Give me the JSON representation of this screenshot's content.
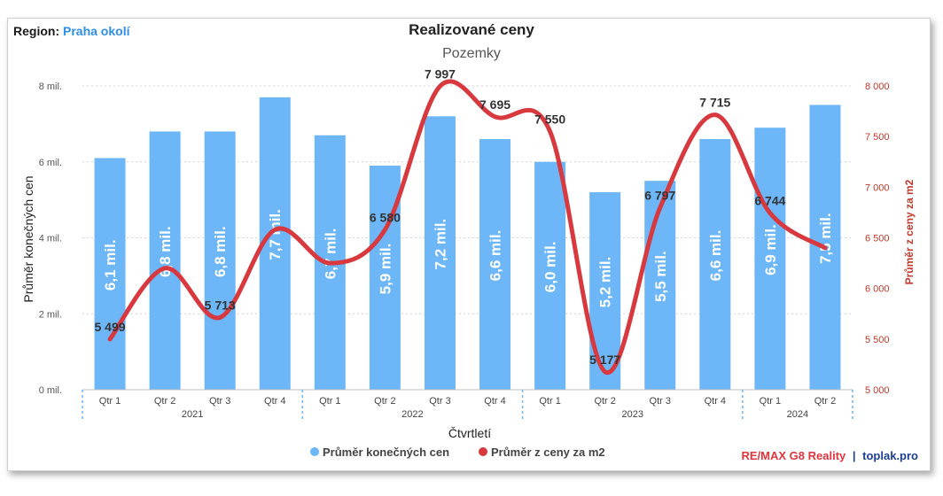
{
  "header": {
    "region_label": "Region:",
    "region_value": "Praha okolí"
  },
  "footer": {
    "brand_part1": "RE/MAX G8 Reality",
    "separator": "|",
    "brand_part2": "toplak.pro"
  },
  "chart_data": {
    "type": "bar",
    "title": "Realizované ceny",
    "subtitle": "Pozemky",
    "xlabel": "Čtvrtletí",
    "ylabel": "Průměr konečných cen",
    "y2label": "Průměr z ceny za m2",
    "ylim": [
      0,
      8
    ],
    "y_ticks": [
      "0 mil.",
      "2 mil.",
      "4 mil.",
      "6 mil.",
      "8 mil."
    ],
    "y2lim": [
      5000,
      8000
    ],
    "y2_ticks": [
      "5 000",
      "5 500",
      "6 000",
      "6 500",
      "7 000",
      "7 500",
      "8 000"
    ],
    "grid": true,
    "legend_position": "bottom",
    "categories": [
      "Qtr 1",
      "Qtr 2",
      "Qtr 3",
      "Qtr 4",
      "Qtr 1",
      "Qtr 2",
      "Qtr 3",
      "Qtr 4",
      "Qtr 1",
      "Qtr 2",
      "Qtr 3",
      "Qtr 4",
      "Qtr 1",
      "Qtr 2"
    ],
    "years": [
      {
        "label": "2021",
        "count": 4
      },
      {
        "label": "2022",
        "count": 4
      },
      {
        "label": "2023",
        "count": 4
      },
      {
        "label": "2024",
        "count": 2
      }
    ],
    "series": [
      {
        "name": "Průměr konečných cen",
        "type": "bar",
        "color": "#6db6f7",
        "values": [
          6.1,
          6.8,
          6.8,
          7.7,
          6.7,
          5.9,
          7.2,
          6.6,
          6.0,
          5.2,
          5.5,
          6.6,
          6.9,
          7.5
        ],
        "labels": [
          "6,1 mil.",
          "6,8 mil.",
          "6,8 mil.",
          "7,7 mil.",
          "6,7 mil.",
          "5,9 mil.",
          "7,2 mil.",
          "6,6 mil.",
          "6,0 mil.",
          "5,2 mil.",
          "5,5 mil.",
          "6,6 mil.",
          "6,9 mil.",
          "7,5 mil."
        ]
      },
      {
        "name": "Průměr z ceny za m2",
        "type": "line",
        "axis": "right",
        "color": "#d7393f",
        "values": [
          5499,
          6200,
          5713,
          6580,
          6250,
          6580,
          7997,
          7695,
          7550,
          5177,
          6797,
          7715,
          6744,
          6400
        ],
        "labels": [
          "5 499",
          "",
          "5 713",
          "",
          "",
          "6 580",
          "7 997",
          "7 695",
          "7 550",
          "5 177",
          "6 797",
          "7 715",
          "6 744",
          ""
        ]
      }
    ]
  }
}
